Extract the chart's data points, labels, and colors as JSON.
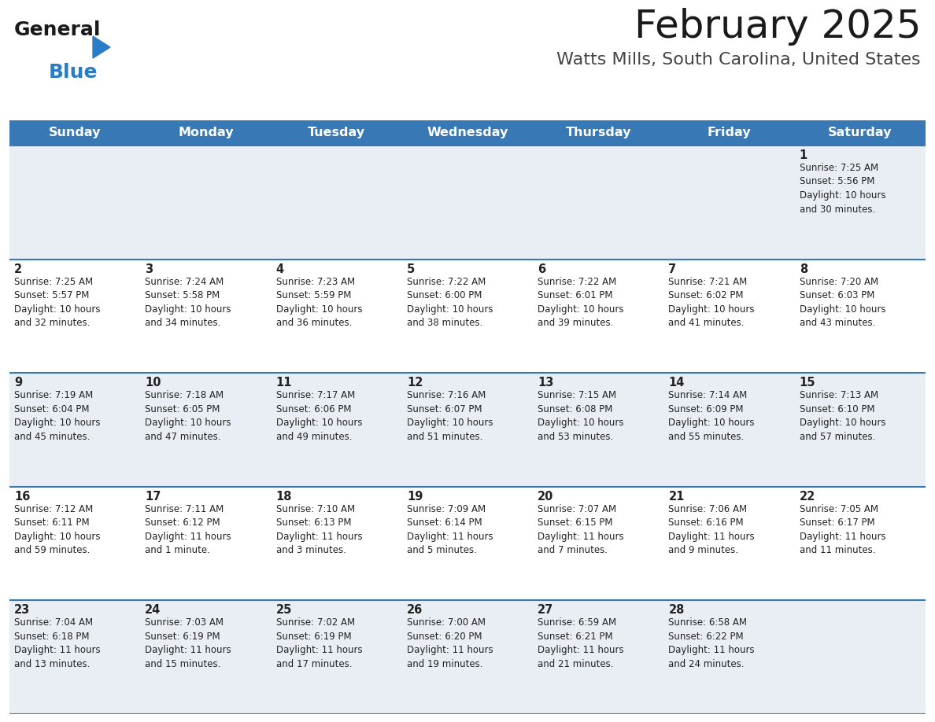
{
  "title": "February 2025",
  "subtitle": "Watts Mills, South Carolina, United States",
  "days_of_week": [
    "Sunday",
    "Monday",
    "Tuesday",
    "Wednesday",
    "Thursday",
    "Friday",
    "Saturday"
  ],
  "header_bg": "#3878b4",
  "header_text": "#ffffff",
  "cell_bg_light": "#e8eef4",
  "cell_bg_white": "#ffffff",
  "cell_text": "#222222",
  "border_color": "#3878b4",
  "title_color": "#1a1a1a",
  "subtitle_color": "#444444",
  "logo_general_color": "#1a1a1a",
  "logo_blue_color": "#2b7cc7",
  "logo_triangle_color": "#2b7cc7",
  "weeks": [
    [
      {
        "day": null,
        "info": null
      },
      {
        "day": null,
        "info": null
      },
      {
        "day": null,
        "info": null
      },
      {
        "day": null,
        "info": null
      },
      {
        "day": null,
        "info": null
      },
      {
        "day": null,
        "info": null
      },
      {
        "day": 1,
        "info": "Sunrise: 7:25 AM\nSunset: 5:56 PM\nDaylight: 10 hours\nand 30 minutes."
      }
    ],
    [
      {
        "day": 2,
        "info": "Sunrise: 7:25 AM\nSunset: 5:57 PM\nDaylight: 10 hours\nand 32 minutes."
      },
      {
        "day": 3,
        "info": "Sunrise: 7:24 AM\nSunset: 5:58 PM\nDaylight: 10 hours\nand 34 minutes."
      },
      {
        "day": 4,
        "info": "Sunrise: 7:23 AM\nSunset: 5:59 PM\nDaylight: 10 hours\nand 36 minutes."
      },
      {
        "day": 5,
        "info": "Sunrise: 7:22 AM\nSunset: 6:00 PM\nDaylight: 10 hours\nand 38 minutes."
      },
      {
        "day": 6,
        "info": "Sunrise: 7:22 AM\nSunset: 6:01 PM\nDaylight: 10 hours\nand 39 minutes."
      },
      {
        "day": 7,
        "info": "Sunrise: 7:21 AM\nSunset: 6:02 PM\nDaylight: 10 hours\nand 41 minutes."
      },
      {
        "day": 8,
        "info": "Sunrise: 7:20 AM\nSunset: 6:03 PM\nDaylight: 10 hours\nand 43 minutes."
      }
    ],
    [
      {
        "day": 9,
        "info": "Sunrise: 7:19 AM\nSunset: 6:04 PM\nDaylight: 10 hours\nand 45 minutes."
      },
      {
        "day": 10,
        "info": "Sunrise: 7:18 AM\nSunset: 6:05 PM\nDaylight: 10 hours\nand 47 minutes."
      },
      {
        "day": 11,
        "info": "Sunrise: 7:17 AM\nSunset: 6:06 PM\nDaylight: 10 hours\nand 49 minutes."
      },
      {
        "day": 12,
        "info": "Sunrise: 7:16 AM\nSunset: 6:07 PM\nDaylight: 10 hours\nand 51 minutes."
      },
      {
        "day": 13,
        "info": "Sunrise: 7:15 AM\nSunset: 6:08 PM\nDaylight: 10 hours\nand 53 minutes."
      },
      {
        "day": 14,
        "info": "Sunrise: 7:14 AM\nSunset: 6:09 PM\nDaylight: 10 hours\nand 55 minutes."
      },
      {
        "day": 15,
        "info": "Sunrise: 7:13 AM\nSunset: 6:10 PM\nDaylight: 10 hours\nand 57 minutes."
      }
    ],
    [
      {
        "day": 16,
        "info": "Sunrise: 7:12 AM\nSunset: 6:11 PM\nDaylight: 10 hours\nand 59 minutes."
      },
      {
        "day": 17,
        "info": "Sunrise: 7:11 AM\nSunset: 6:12 PM\nDaylight: 11 hours\nand 1 minute."
      },
      {
        "day": 18,
        "info": "Sunrise: 7:10 AM\nSunset: 6:13 PM\nDaylight: 11 hours\nand 3 minutes."
      },
      {
        "day": 19,
        "info": "Sunrise: 7:09 AM\nSunset: 6:14 PM\nDaylight: 11 hours\nand 5 minutes."
      },
      {
        "day": 20,
        "info": "Sunrise: 7:07 AM\nSunset: 6:15 PM\nDaylight: 11 hours\nand 7 minutes."
      },
      {
        "day": 21,
        "info": "Sunrise: 7:06 AM\nSunset: 6:16 PM\nDaylight: 11 hours\nand 9 minutes."
      },
      {
        "day": 22,
        "info": "Sunrise: 7:05 AM\nSunset: 6:17 PM\nDaylight: 11 hours\nand 11 minutes."
      }
    ],
    [
      {
        "day": 23,
        "info": "Sunrise: 7:04 AM\nSunset: 6:18 PM\nDaylight: 11 hours\nand 13 minutes."
      },
      {
        "day": 24,
        "info": "Sunrise: 7:03 AM\nSunset: 6:19 PM\nDaylight: 11 hours\nand 15 minutes."
      },
      {
        "day": 25,
        "info": "Sunrise: 7:02 AM\nSunset: 6:19 PM\nDaylight: 11 hours\nand 17 minutes."
      },
      {
        "day": 26,
        "info": "Sunrise: 7:00 AM\nSunset: 6:20 PM\nDaylight: 11 hours\nand 19 minutes."
      },
      {
        "day": 27,
        "info": "Sunrise: 6:59 AM\nSunset: 6:21 PM\nDaylight: 11 hours\nand 21 minutes."
      },
      {
        "day": 28,
        "info": "Sunrise: 6:58 AM\nSunset: 6:22 PM\nDaylight: 11 hours\nand 24 minutes."
      },
      {
        "day": null,
        "info": null
      }
    ]
  ]
}
